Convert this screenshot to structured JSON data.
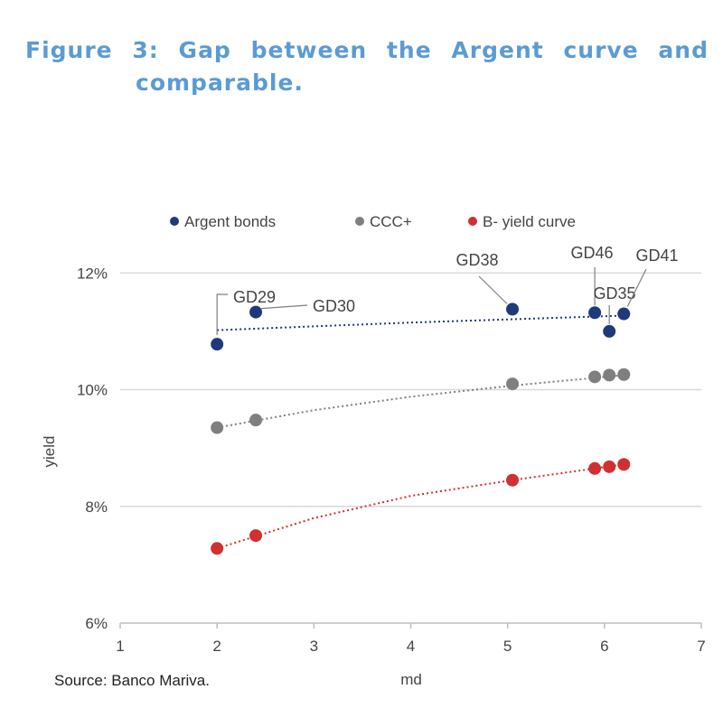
{
  "title_line1": "Figure 3: Gap between the Argent curve and",
  "title_line2": "comparable.",
  "source": "Source: Banco Mariva.",
  "chart_data": {
    "type": "scatter",
    "xlabel": "md",
    "ylabel": "yield",
    "xlim": [
      1,
      7
    ],
    "ylim": [
      6,
      12.5
    ],
    "xticks": [
      1,
      2,
      3,
      4,
      5,
      6,
      7
    ],
    "yticks": [
      6,
      8,
      10,
      12
    ],
    "ytick_labels": [
      "6%",
      "8%",
      "10%",
      "12%"
    ],
    "grid": "horizontal",
    "legend_position": "top",
    "series": [
      {
        "name": "Argent bonds",
        "color": "#1f3a7a",
        "x": [
          2.0,
          2.4,
          5.05,
          5.9,
          6.05,
          6.2
        ],
        "y": [
          10.78,
          11.33,
          11.38,
          11.32,
          11.0,
          11.3
        ],
        "labels": [
          "GD29",
          "GD30",
          "GD38",
          "GD46",
          "GD35",
          "GD41"
        ],
        "trend": [
          [
            2.0,
            11.02
          ],
          [
            4.0,
            11.15
          ],
          [
            6.2,
            11.27
          ]
        ]
      },
      {
        "name": "CCC+",
        "color": "#7f7f7f",
        "x": [
          2.0,
          2.4,
          5.05,
          5.9,
          6.05,
          6.2
        ],
        "y": [
          9.35,
          9.48,
          10.1,
          10.22,
          10.25,
          10.26
        ],
        "trend": [
          [
            2.0,
            9.35
          ],
          [
            3.0,
            9.65
          ],
          [
            4.0,
            9.88
          ],
          [
            5.05,
            10.07
          ],
          [
            6.2,
            10.25
          ]
        ]
      },
      {
        "name": "B- yield curve",
        "color": "#d03030",
        "x": [
          2.0,
          2.4,
          5.05,
          5.9,
          6.05,
          6.2
        ],
        "y": [
          7.28,
          7.5,
          8.45,
          8.65,
          8.68,
          8.72
        ],
        "trend": [
          [
            2.0,
            7.28
          ],
          [
            3.0,
            7.8
          ],
          [
            4.0,
            8.18
          ],
          [
            5.05,
            8.45
          ],
          [
            6.2,
            8.72
          ]
        ]
      }
    ]
  }
}
